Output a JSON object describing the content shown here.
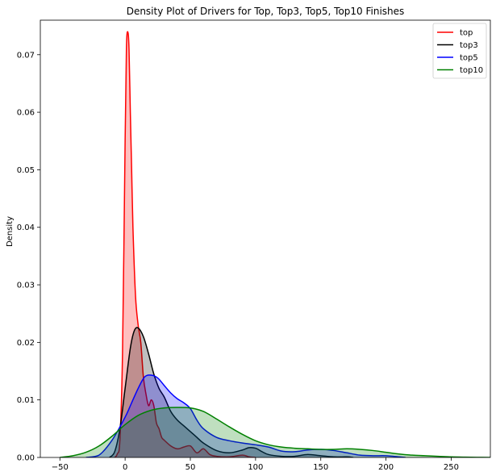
{
  "chart_data": {
    "type": "area",
    "title": "Density Plot of Drivers for Top, Top3, Top5, Top10 Finishes",
    "xlabel": "",
    "ylabel": "Density",
    "xlim": [
      -65,
      280
    ],
    "ylim": [
      0,
      0.076
    ],
    "xticks": [
      -50,
      0,
      50,
      100,
      150,
      200,
      250
    ],
    "xtick_labels": [
      "−50",
      "0",
      "50",
      "100",
      "150",
      "200",
      "250"
    ],
    "yticks": [
      0,
      0.01,
      0.02,
      0.03,
      0.04,
      0.05,
      0.06,
      0.07
    ],
    "ytick_labels": [
      "0.00",
      "0.01",
      "0.02",
      "0.03",
      "0.04",
      "0.05",
      "0.06",
      "0.07"
    ],
    "grid": false,
    "legend_position": "top-right",
    "series": [
      {
        "name": "top",
        "color": "#ff0000",
        "fill": "#ff0000",
        "fill_opacity": 0.25,
        "x": [
          -8,
          -6,
          -4,
          -2,
          0,
          1,
          2,
          3,
          4,
          5,
          6,
          8,
          10,
          12,
          14,
          16,
          18,
          20,
          22,
          24,
          26,
          28,
          30,
          35,
          40,
          45,
          50,
          55,
          60,
          65,
          70,
          80,
          90,
          95,
          100
        ],
        "y": [
          0,
          0.0006,
          0.003,
          0.018,
          0.055,
          0.071,
          0.074,
          0.071,
          0.06,
          0.05,
          0.04,
          0.028,
          0.023,
          0.02,
          0.014,
          0.011,
          0.009,
          0.01,
          0.009,
          0.006,
          0.005,
          0.0035,
          0.003,
          0.002,
          0.0015,
          0.0018,
          0.002,
          0.0008,
          0.0015,
          0.0005,
          0.0002,
          0.0001,
          0.0004,
          0.0001,
          0
        ]
      },
      {
        "name": "top3",
        "color": "#000000",
        "fill": "#000000",
        "fill_opacity": 0.25,
        "x": [
          -12,
          -8,
          -4,
          0,
          4,
          7,
          10,
          14,
          18,
          22,
          26,
          30,
          35,
          40,
          45,
          50,
          55,
          60,
          70,
          80,
          90,
          95,
          100,
          105,
          110,
          120,
          130,
          140,
          150,
          160,
          170,
          175
        ],
        "y": [
          0,
          0.001,
          0.005,
          0.012,
          0.019,
          0.022,
          0.0225,
          0.021,
          0.018,
          0.0145,
          0.012,
          0.0105,
          0.008,
          0.0065,
          0.0055,
          0.0045,
          0.0035,
          0.0025,
          0.0012,
          0.0008,
          0.0013,
          0.0017,
          0.0016,
          0.001,
          0.0005,
          0.0002,
          0.0002,
          0.0005,
          0.0003,
          0.0001,
          0.0001,
          0
        ]
      },
      {
        "name": "top5",
        "color": "#0000ff",
        "fill": "#0000ff",
        "fill_opacity": 0.25,
        "x": [
          -30,
          -20,
          -10,
          0,
          5,
          10,
          15,
          20,
          25,
          30,
          35,
          40,
          45,
          50,
          55,
          60,
          70,
          80,
          90,
          100,
          110,
          120,
          130,
          140,
          150,
          160,
          170,
          180,
          190,
          200,
          210,
          215
        ],
        "y": [
          0,
          0.0004,
          0.003,
          0.007,
          0.0095,
          0.012,
          0.014,
          0.0143,
          0.0138,
          0.0125,
          0.0112,
          0.0102,
          0.0095,
          0.0085,
          0.0065,
          0.005,
          0.0035,
          0.0029,
          0.0025,
          0.0022,
          0.0018,
          0.0011,
          0.001,
          0.0013,
          0.0014,
          0.0012,
          0.0008,
          0.0004,
          0.0003,
          0.0003,
          0.0001,
          0
        ]
      },
      {
        "name": "top10",
        "color": "#008000",
        "fill": "#008000",
        "fill_opacity": 0.25,
        "x": [
          -50,
          -40,
          -30,
          -20,
          -10,
          0,
          10,
          20,
          30,
          40,
          50,
          60,
          70,
          80,
          90,
          100,
          110,
          120,
          130,
          140,
          150,
          160,
          170,
          180,
          190,
          200,
          210,
          220,
          230,
          240,
          250,
          260,
          270,
          280
        ],
        "y": [
          0,
          0.0003,
          0.0009,
          0.002,
          0.0037,
          0.0057,
          0.0073,
          0.0082,
          0.0086,
          0.0087,
          0.0086,
          0.008,
          0.0067,
          0.0053,
          0.004,
          0.0029,
          0.0022,
          0.0018,
          0.0016,
          0.0015,
          0.0014,
          0.0014,
          0.0015,
          0.0014,
          0.0012,
          0.0009,
          0.0006,
          0.0004,
          0.0003,
          0.0002,
          0.0001,
          5e-05,
          2e-05,
          0
        ]
      }
    ]
  }
}
